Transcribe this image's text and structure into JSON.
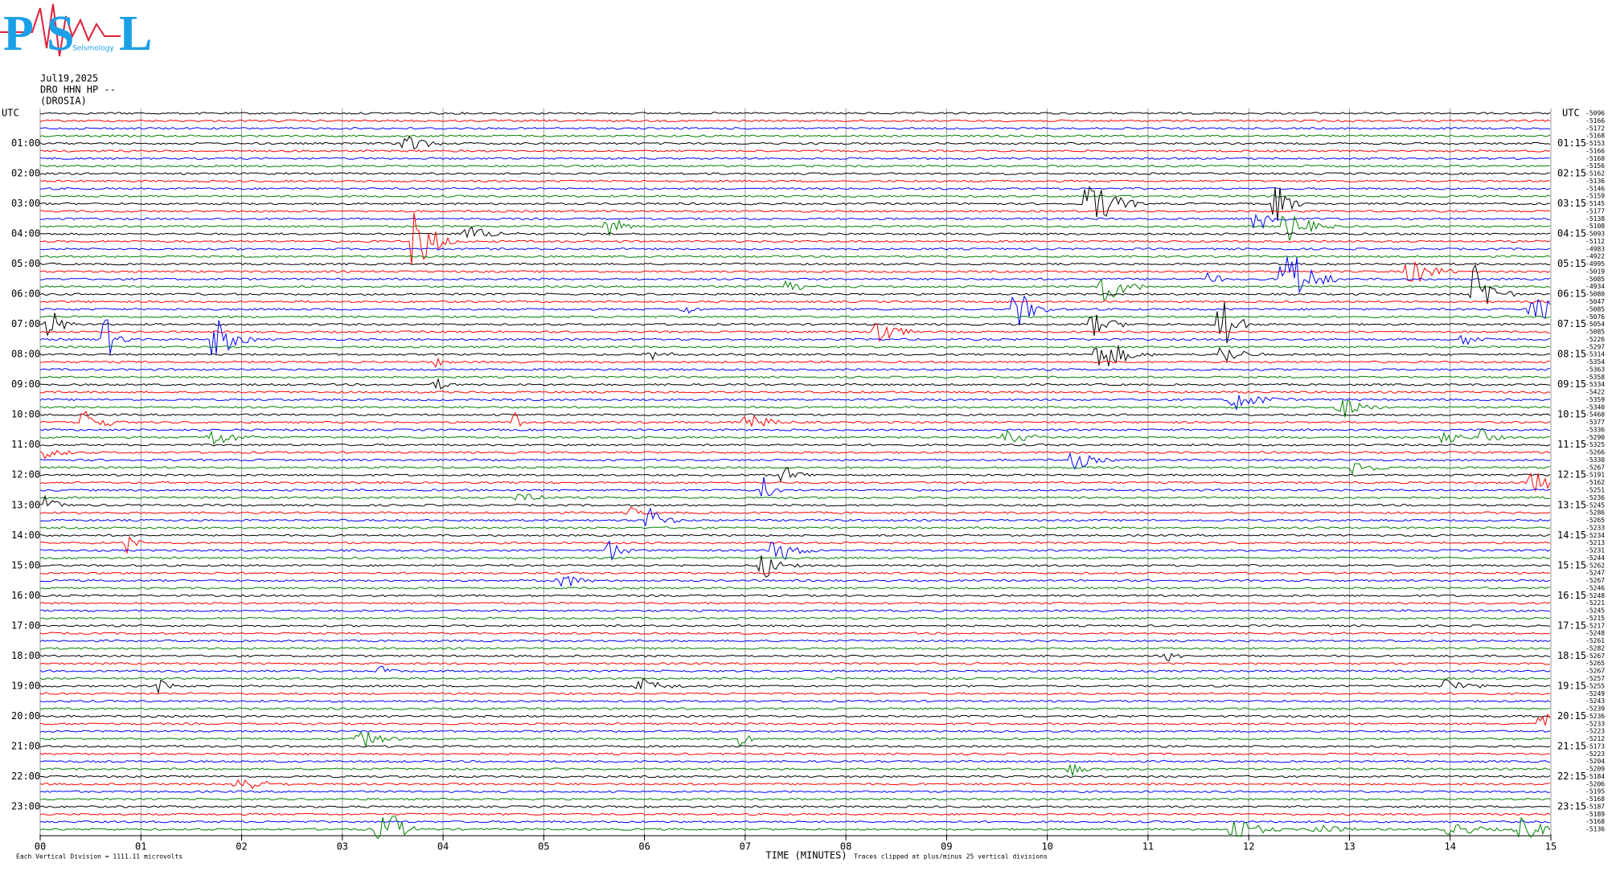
{
  "header": {
    "logo_letters": [
      "P",
      "S",
      "L"
    ],
    "logo_text": "Seismology"
  },
  "chart_data": {
    "type": "helicorder",
    "title_lines": [
      "Jul19,2025",
      "DRO HHN HP --",
      "(DROSIA)"
    ],
    "left_header": "UTC",
    "right_header": "UTC",
    "left_labels": [
      "01:00",
      "02:00",
      "03:00",
      "04:00",
      "05:00",
      "06:00",
      "07:00",
      "08:00",
      "09:00",
      "10:00",
      "11:00",
      "12:00",
      "13:00",
      "14:00",
      "15:00",
      "16:00",
      "17:00",
      "18:00",
      "19:00",
      "20:00",
      "21:00",
      "22:00",
      "23:00"
    ],
    "right_labels": [
      "01:15",
      "02:15",
      "03:15",
      "04:15",
      "05:15",
      "06:15",
      "07:15",
      "08:15",
      "09:15",
      "10:15",
      "11:15",
      "12:15",
      "13:15",
      "14:15",
      "15:15",
      "16:15",
      "17:15",
      "18:15",
      "19:15",
      "20:15",
      "21:15",
      "22:15",
      "23:15"
    ],
    "row_offsets": [
      -5096,
      -5166,
      -5172,
      -5168,
      -5153,
      -5166,
      -5160,
      -5156,
      -5162,
      -5136,
      -5146,
      -5159,
      -5145,
      -5177,
      -5138,
      -5108,
      -5093,
      -5112,
      -4983,
      -4922,
      -4995,
      -5019,
      -5085,
      -4934,
      -5080,
      -5047,
      -5085,
      -5076,
      -5054,
      -5085,
      -5226,
      -5297,
      -5314,
      -5354,
      -5363,
      -5358,
      -5334,
      -5422,
      -5359,
      -5340,
      -5460,
      -5377,
      -5336,
      -5290,
      -5325,
      -5266,
      -5330,
      -5267,
      -5191,
      -5162,
      -5251,
      -5236,
      -5245,
      -5286,
      -5265,
      -5233,
      -5234,
      -5213,
      -5231,
      -5244,
      -5262,
      -5247,
      -5267,
      -5246,
      -5248,
      -5221,
      -5245,
      -5215,
      -5217,
      -5248,
      -5261,
      -5282,
      -5267,
      -5265,
      -5267,
      -5257,
      -5255,
      -5249,
      -5243,
      -5239,
      -5236,
      -5233,
      -5223,
      -5212,
      -5173,
      -5223,
      -5204,
      -5209,
      -5184,
      -5206,
      -5195,
      -5168,
      -5187,
      -5189,
      -5168,
      -5136
    ],
    "trace_colors": [
      "#000000",
      "#ff0000",
      "#0000ff",
      "#008000"
    ],
    "xlim": [
      0,
      15
    ],
    "xticks": [
      {
        "value": 0,
        "label": "00"
      },
      {
        "value": 1,
        "label": "01"
      },
      {
        "value": 2,
        "label": "02"
      },
      {
        "value": 3,
        "label": "03"
      },
      {
        "value": 4,
        "label": "04"
      },
      {
        "value": 5,
        "label": "05"
      },
      {
        "value": 6,
        "label": "06"
      },
      {
        "value": 7,
        "label": "07"
      },
      {
        "value": 8,
        "label": "08"
      },
      {
        "value": 9,
        "label": "09"
      },
      10,
      11,
      12,
      13,
      14,
      15
    ],
    "xlabel": "TIME (MINUTES)",
    "scale_note": "Each Vertical Division = 1111.11 microvolts",
    "clip_note": "Traces clipped at plus/minus 25 vertical divisions",
    "grid": true
  }
}
